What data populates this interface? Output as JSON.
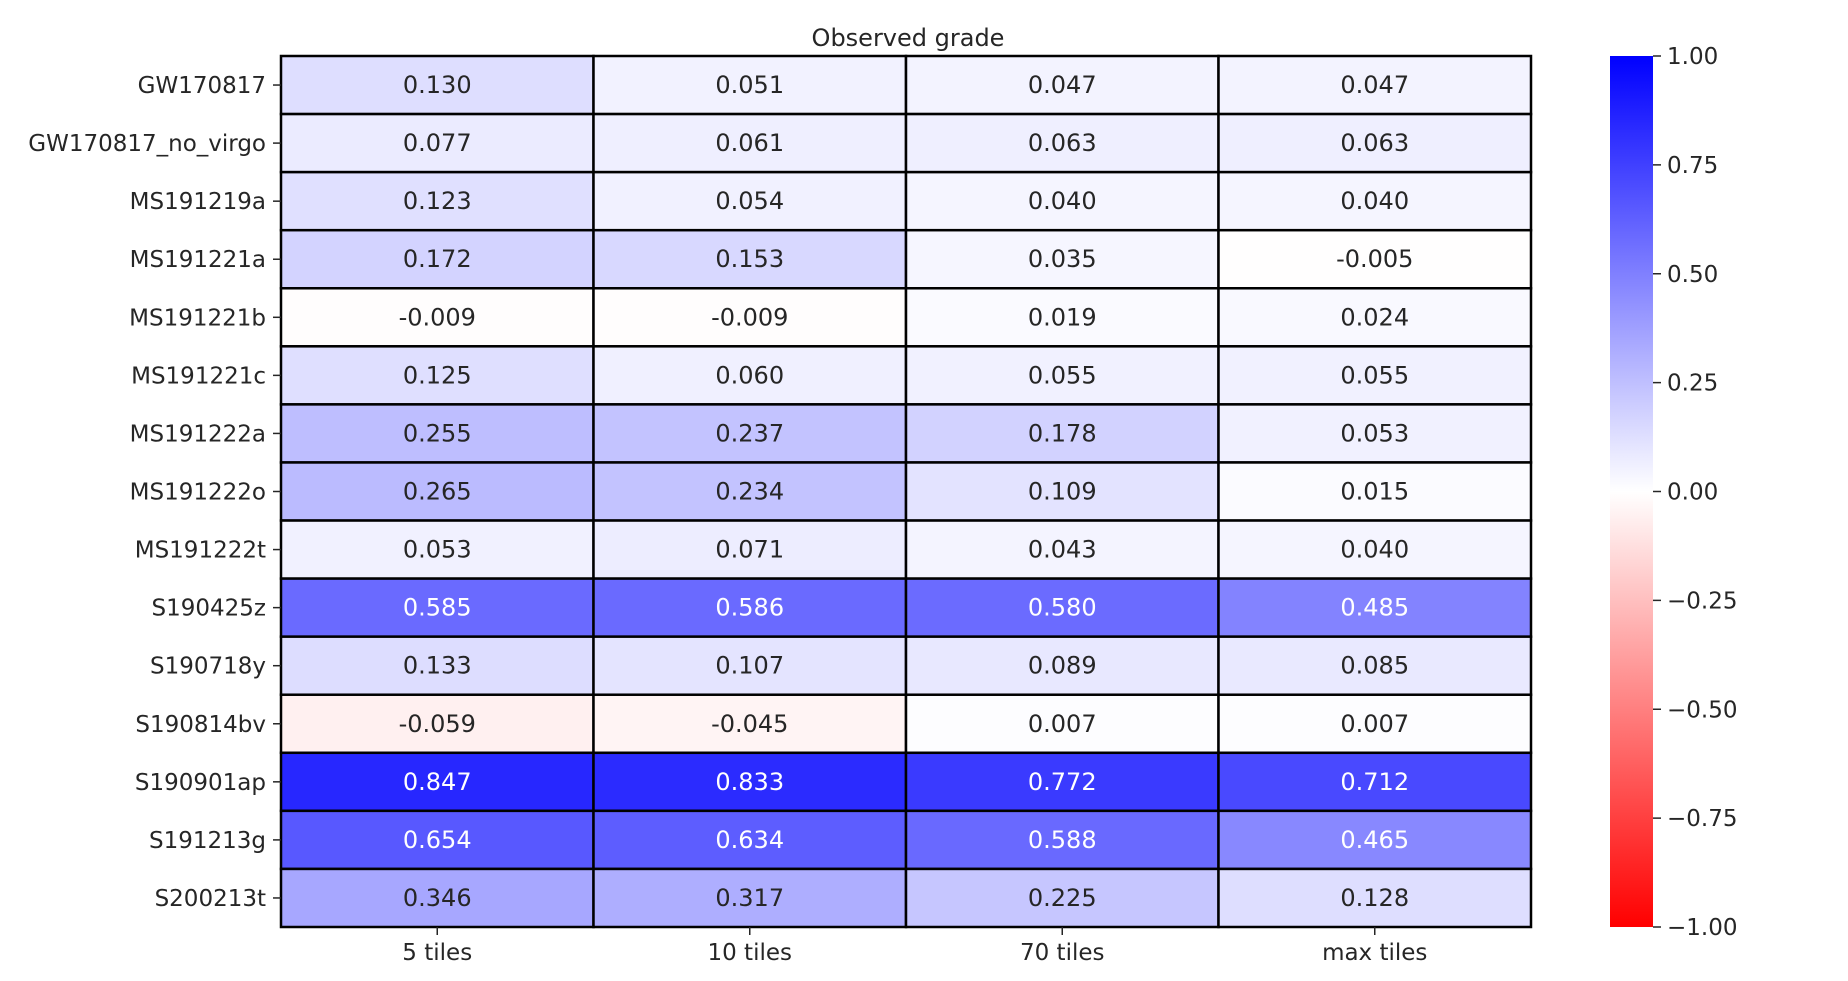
{
  "chart_data": {
    "type": "heatmap",
    "title": "Observed grade",
    "xlabel": "",
    "ylabel": "",
    "columns": [
      "5 tiles",
      "10 tiles",
      "70 tiles",
      "max tiles"
    ],
    "rows": [
      "GW170817",
      "GW170817_no_virgo",
      "MS191219a",
      "MS191221a",
      "MS191221b",
      "MS191221c",
      "MS191222a",
      "MS191222o",
      "MS191222t",
      "S190425z",
      "S190718y",
      "S190814bv",
      "S190901ap",
      "S191213g",
      "S200213t"
    ],
    "values": [
      [
        0.13,
        0.051,
        0.047,
        0.047
      ],
      [
        0.077,
        0.061,
        0.063,
        0.063
      ],
      [
        0.123,
        0.054,
        0.04,
        0.04
      ],
      [
        0.172,
        0.153,
        0.035,
        -0.005
      ],
      [
        -0.009,
        -0.009,
        0.019,
        0.024
      ],
      [
        0.125,
        0.06,
        0.055,
        0.055
      ],
      [
        0.255,
        0.237,
        0.178,
        0.053
      ],
      [
        0.265,
        0.234,
        0.109,
        0.015
      ],
      [
        0.053,
        0.071,
        0.043,
        0.04
      ],
      [
        0.585,
        0.586,
        0.58,
        0.485
      ],
      [
        0.133,
        0.107,
        0.089,
        0.085
      ],
      [
        -0.059,
        -0.045,
        0.007,
        0.007
      ],
      [
        0.847,
        0.833,
        0.772,
        0.712
      ],
      [
        0.654,
        0.634,
        0.588,
        0.465
      ],
      [
        0.346,
        0.317,
        0.225,
        0.128
      ]
    ],
    "value_labels": [
      [
        "0.130",
        "0.051",
        "0.047",
        "0.047"
      ],
      [
        "0.077",
        "0.061",
        "0.063",
        "0.063"
      ],
      [
        "0.123",
        "0.054",
        "0.040",
        "0.040"
      ],
      [
        "0.172",
        "0.153",
        "0.035",
        "-0.005"
      ],
      [
        "-0.009",
        "-0.009",
        "0.019",
        "0.024"
      ],
      [
        "0.125",
        "0.060",
        "0.055",
        "0.055"
      ],
      [
        "0.255",
        "0.237",
        "0.178",
        "0.053"
      ],
      [
        "0.265",
        "0.234",
        "0.109",
        "0.015"
      ],
      [
        "0.053",
        "0.071",
        "0.043",
        "0.040"
      ],
      [
        "0.585",
        "0.586",
        "0.580",
        "0.485"
      ],
      [
        "0.133",
        "0.107",
        "0.089",
        "0.085"
      ],
      [
        "-0.059",
        "-0.045",
        "0.007",
        "0.007"
      ],
      [
        "0.847",
        "0.833",
        "0.772",
        "0.712"
      ],
      [
        "0.654",
        "0.634",
        "0.588",
        "0.465"
      ],
      [
        "0.346",
        "0.317",
        "0.225",
        "0.128"
      ]
    ],
    "colorbar": {
      "range": [
        -1.0,
        1.0
      ],
      "ticks": [
        1.0,
        0.75,
        0.5,
        0.25,
        0.0,
        -0.25,
        -0.5,
        -0.75,
        -1.0
      ],
      "tick_labels": [
        "1.00",
        "0.75",
        "0.50",
        "0.25",
        "0.00",
        "−0.25",
        "−0.50",
        "−0.75",
        "−1.00"
      ],
      "colormap": "bwr_r",
      "colors": {
        "max": "#0000ff",
        "mid": "#ffffff",
        "min": "#ff0000"
      },
      "placement": "right"
    },
    "grid": true,
    "cell_border_color": "#000000",
    "text_dark": "#262626",
    "text_light": "#ffffff"
  }
}
